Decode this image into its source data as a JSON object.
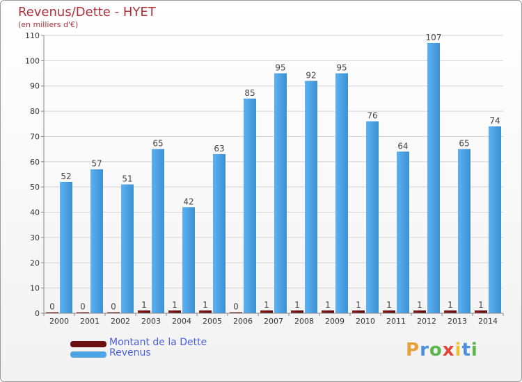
{
  "chart_data": {
    "type": "bar",
    "title": "Revenus/Dette - HYET",
    "subtitle": "(en milliers d'€)",
    "categories": [
      "2000",
      "2001",
      "2002",
      "2003",
      "2004",
      "2005",
      "2006",
      "2007",
      "2008",
      "2009",
      "2010",
      "2011",
      "2012",
      "2013",
      "2014"
    ],
    "series": [
      {
        "name": "Montant de la Dette",
        "color": "#6b0f12",
        "values": [
          0,
          0,
          0,
          1,
          1,
          1,
          0,
          1,
          1,
          1,
          1,
          1,
          1,
          1,
          1
        ]
      },
      {
        "name": "Revenus",
        "color": "#4ea5e6",
        "values": [
          52,
          57,
          51,
          65,
          42,
          63,
          85,
          95,
          92,
          95,
          76,
          64,
          107,
          65,
          74
        ]
      }
    ],
    "ylim": [
      0,
      110
    ],
    "yticks": [
      0,
      10,
      20,
      30,
      40,
      50,
      60,
      70,
      80,
      90,
      100,
      110
    ],
    "grid": true,
    "legend": "bottom-left"
  },
  "brand": {
    "letters": [
      "P",
      "r",
      "o",
      "x",
      "i",
      "t",
      "i"
    ],
    "colors": [
      "#e8a13a",
      "#4a8fd8",
      "#5bb54a",
      "#e0453a",
      "#f0c030",
      "#4a8fd8",
      "#5bb54a"
    ]
  }
}
